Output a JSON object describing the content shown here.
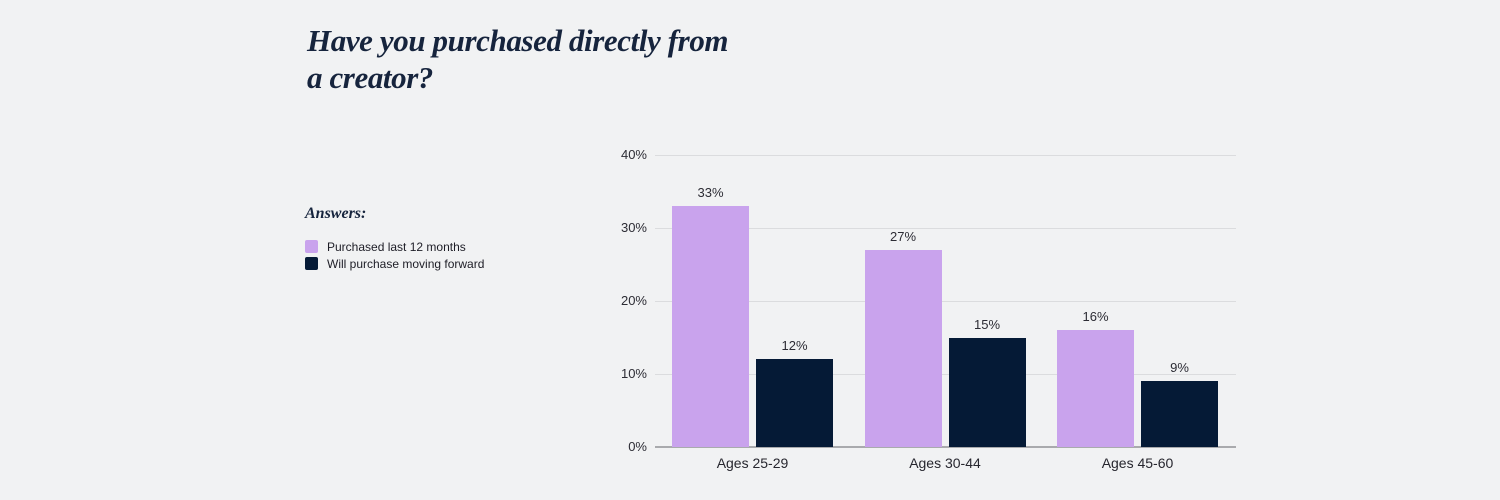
{
  "page": {
    "background": "#f1f2f3"
  },
  "chart_data": {
    "type": "bar",
    "title": "Have you purchased directly from a creator?",
    "legend_title": "Answers:",
    "legend_position": "left",
    "categories": [
      "Ages 25-29",
      "Ages 30-44",
      "Ages 45-60"
    ],
    "series": [
      {
        "name": "Purchased last 12 months",
        "color": "#c9a3ed",
        "values": [
          33,
          27,
          16
        ]
      },
      {
        "name": "Will purchase moving forward",
        "color": "#051a36",
        "values": [
          12,
          15,
          9
        ]
      }
    ],
    "value_labels": [
      [
        "33%",
        "27%",
        "16%"
      ],
      [
        "12%",
        "15%",
        "9%"
      ]
    ],
    "ylim": [
      0,
      40
    ],
    "y_ticks": [
      0,
      10,
      20,
      30,
      40
    ],
    "y_tick_labels": [
      "0%",
      "10%",
      "20%",
      "30%",
      "40%"
    ],
    "grid": true,
    "colors": {
      "title_text": "#16243d",
      "label_text": "#2c2c34",
      "gridline": "#dbdcde",
      "axis_line": "#a9aaad"
    }
  }
}
